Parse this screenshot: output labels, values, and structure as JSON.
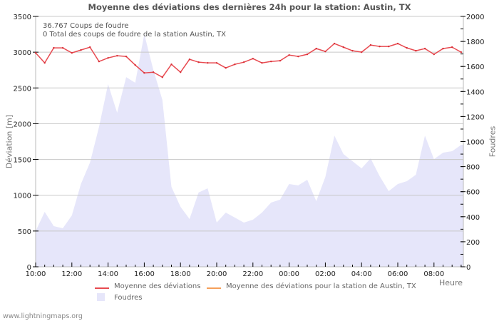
{
  "title": "Moyenne des déviations des dernières 24h pour la station: Austin, TX",
  "info": {
    "line1": "36.767  Coups de foudre",
    "line2": "0 Total des coups de foudre de la station Austin, TX"
  },
  "axes": {
    "left_label": "Déviation  [m]",
    "right_label": "Foudres",
    "x_label": "Heure"
  },
  "legend": {
    "items": [
      {
        "label": "Moyenne des déviations",
        "color": "#e84a50"
      },
      {
        "label": "Moyenne des déviations pour la station de Austin, TX",
        "color": "#f5a05a"
      },
      {
        "label": "Foudres",
        "color": "#e6e6fa"
      }
    ]
  },
  "footer": "www.lightningmaps.org",
  "chart_data": {
    "type": "line",
    "title": "Moyenne des déviations des dernières 24h pour la station: Austin, TX",
    "xlabel": "Heure",
    "ylabel": "Déviation  [m]",
    "y2label": "Foudres",
    "ylim": [
      0,
      3500
    ],
    "y2lim": [
      0,
      2000
    ],
    "yticks": [
      "0",
      "500",
      "1000",
      "1500",
      "2000",
      "2500",
      "3000",
      "3500"
    ],
    "y2ticks": [
      "0",
      "200",
      "400",
      "600",
      "800",
      "1000",
      "1200",
      "1400",
      "1600",
      "1800",
      "2000"
    ],
    "xticks": [
      "10:00",
      "12:00",
      "14:00",
      "16:00",
      "18:00",
      "20:00",
      "22:00",
      "00:00",
      "02:00",
      "04:00",
      "06:00",
      "08:00"
    ],
    "grid": true,
    "legend_position": "bottom",
    "x": [
      "10:00",
      "10:30",
      "11:00",
      "11:30",
      "12:00",
      "12:30",
      "13:00",
      "13:30",
      "14:00",
      "14:30",
      "15:00",
      "15:30",
      "16:00",
      "16:30",
      "17:00",
      "17:30",
      "18:00",
      "18:30",
      "19:00",
      "19:30",
      "20:00",
      "20:30",
      "21:00",
      "21:30",
      "22:00",
      "22:30",
      "23:00",
      "23:30",
      "00:00",
      "00:30",
      "01:00",
      "01:30",
      "02:00",
      "02:30",
      "03:00",
      "03:30",
      "04:00",
      "04:30",
      "05:00",
      "05:30",
      "06:00",
      "06:30",
      "07:00",
      "07:30",
      "08:00",
      "08:30",
      "09:00",
      "09:30"
    ],
    "series": [
      {
        "name": "Moyenne des déviations",
        "axis": "left",
        "color": "#e84a50",
        "values": [
          2990,
          2850,
          3060,
          3060,
          2990,
          3030,
          3070,
          2870,
          2920,
          2950,
          2940,
          2820,
          2710,
          2720,
          2650,
          2830,
          2720,
          2900,
          2860,
          2850,
          2850,
          2780,
          2830,
          2860,
          2910,
          2850,
          2870,
          2880,
          2960,
          2940,
          2970,
          3050,
          3010,
          3120,
          3070,
          3020,
          3000,
          3100,
          3080,
          3080,
          3120,
          3060,
          3020,
          3050,
          2970,
          3050,
          3070,
          3000
        ]
      },
      {
        "name": "Moyenne des déviations pour la station de Austin, TX",
        "axis": "left",
        "color": "#f5a05a",
        "values": []
      },
      {
        "name": "Foudres",
        "axis": "right",
        "type": "area",
        "color": "#e6e6fa",
        "values": [
          285,
          439,
          325,
          308,
          410,
          661,
          832,
          1117,
          1459,
          1231,
          1515,
          1470,
          1858,
          1573,
          1333,
          638,
          479,
          382,
          593,
          627,
          353,
          433,
          393,
          353,
          376,
          433,
          513,
          536,
          661,
          650,
          695,
          524,
          718,
          1048,
          900,
          843,
          786,
          866,
          724,
          604,
          661,
          684,
          735,
          1048,
          860,
          912,
          923,
          974
        ]
      }
    ]
  }
}
